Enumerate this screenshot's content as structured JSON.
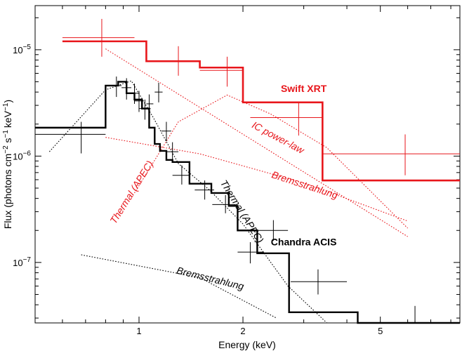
{
  "chart_data": {
    "type": "line",
    "xlabel": "Energy (keV)",
    "ylabel_parts": [
      "Flux (photons cm",
      "−2",
      " s",
      "−1",
      "keV",
      "−1",
      ")"
    ],
    "x_scale": "log",
    "y_scale": "log",
    "xlim": [
      0.5,
      8.5
    ],
    "ylim": [
      2.7e-08,
      2.6e-05
    ],
    "x_ticks": [
      {
        "value": 1,
        "label": "1"
      },
      {
        "value": 2,
        "label": "2"
      },
      {
        "value": 5,
        "label": "5"
      }
    ],
    "y_ticks": [
      {
        "value": 1e-07,
        "base": "10",
        "exp": "−7"
      },
      {
        "value": 1e-06,
        "base": "10",
        "exp": "−6"
      },
      {
        "value": 1e-05,
        "base": "10",
        "exp": "−5"
      }
    ],
    "colors": {
      "swift": "#e8161b",
      "chandra": "#000000"
    },
    "series": [
      {
        "name": "Swift XRT",
        "style": "data",
        "color_key": "swift",
        "points": [
          {
            "x": 0.78,
            "xlo": 0.6,
            "xhi": 0.97,
            "y": 1.3e-05,
            "ylo": 8.6e-06,
            "yhi": 1.95e-05
          },
          {
            "x": 1.3,
            "xlo": 1.12,
            "xhi": 1.5,
            "y": 7.8e-06,
            "ylo": 5.7e-06,
            "yhi": 1.08e-05
          },
          {
            "x": 1.8,
            "xlo": 1.5,
            "xhi": 2.0,
            "y": 6.4e-06,
            "ylo": 4.5e-06,
            "yhi": 8.6e-06
          },
          {
            "x": 2.9,
            "xlo": 2.1,
            "xhi": 3.4,
            "y": 2.3e-06,
            "ylo": 1.56e-06,
            "yhi": 3.2e-06
          },
          {
            "x": 5.9,
            "xlo": 3.4,
            "xhi": 8.5,
            "y": 1.05e-06,
            "ylo": 6.6e-07,
            "yhi": 1.6e-06
          }
        ]
      },
      {
        "name": "Swift XRT model",
        "style": "step",
        "color_key": "swift",
        "steps": [
          {
            "x0": 0.6,
            "x1": 1.05,
            "y": 1.2e-05
          },
          {
            "x0": 1.05,
            "x1": 1.5,
            "y": 7.8e-06
          },
          {
            "x0": 1.5,
            "x1": 2.0,
            "y": 6.8e-06
          },
          {
            "x0": 2.0,
            "x1": 3.4,
            "y": 3.2e-06
          },
          {
            "x0": 3.4,
            "x1": 8.5,
            "y": 5.9e-07
          }
        ]
      },
      {
        "name": "IC power-law",
        "style": "dotted",
        "color_key": "swift",
        "points": [
          [
            0.8,
            1.02e-05
          ],
          [
            6.0,
            1.75e-07
          ]
        ]
      },
      {
        "name": "Bremsstrahlung",
        "style": "dotted",
        "color_key": "swift",
        "points": [
          [
            0.8,
            1.5e-06
          ],
          [
            1.5,
            1.05e-06
          ],
          [
            3.0,
            5.6e-07
          ],
          [
            6.0,
            2.45e-07
          ]
        ]
      },
      {
        "name": "Thermal (APEC)",
        "style": "dotted",
        "color_key": "swift",
        "points": [
          [
            0.97,
            4.5e-07
          ],
          [
            1.3,
            2.1e-06
          ],
          [
            1.8,
            3.75e-06
          ],
          [
            2.4,
            2.5e-06
          ],
          [
            3.5,
            1.2e-06
          ],
          [
            6.0,
            2.1e-07
          ]
        ]
      },
      {
        "name": "Chandra ACIS",
        "style": "data",
        "color_key": "chandra",
        "points": [
          {
            "x": 0.68,
            "xlo": 0.5,
            "xhi": 0.8,
            "y": 1.6e-06,
            "ylo": 1.06e-06,
            "yhi": 2.1e-06
          },
          {
            "x": 0.86,
            "xlo": 0.83,
            "xhi": 0.89,
            "y": 4.6e-06,
            "ylo": 3.6e-06,
            "yhi": 5.6e-06
          },
          {
            "x": 0.92,
            "xlo": 0.89,
            "xhi": 0.95,
            "y": 4.4e-06,
            "ylo": 3.4e-06,
            "yhi": 5.4e-06
          },
          {
            "x": 0.97,
            "xlo": 0.94,
            "xhi": 1.0,
            "y": 3.9e-06,
            "ylo": 3.1e-06,
            "yhi": 4.8e-06
          },
          {
            "x": 1.0,
            "xlo": 0.97,
            "xhi": 1.03,
            "y": 3.3e-06,
            "ylo": 2.6e-06,
            "yhi": 4.1e-06
          },
          {
            "x": 1.04,
            "xlo": 1.0,
            "xhi": 1.08,
            "y": 2.8e-06,
            "ylo": 2.2e-06,
            "yhi": 3.4e-06
          },
          {
            "x": 1.07,
            "xlo": 1.05,
            "xhi": 1.1,
            "y": 3.1e-06,
            "ylo": 2.4e-06,
            "yhi": 3.8e-06
          },
          {
            "x": 1.14,
            "xlo": 1.11,
            "xhi": 1.17,
            "y": 4e-06,
            "ylo": 3.2e-06,
            "yhi": 4.9e-06
          },
          {
            "x": 1.2,
            "xlo": 1.16,
            "xhi": 1.24,
            "y": 1.72e-06,
            "ylo": 1.38e-06,
            "yhi": 2.1e-06
          },
          {
            "x": 1.25,
            "xlo": 1.2,
            "xhi": 1.3,
            "y": 1.1e-06,
            "ylo": 9e-07,
            "yhi": 1.35e-06
          },
          {
            "x": 1.33,
            "xlo": 1.25,
            "xhi": 1.4,
            "y": 6.6e-07,
            "ylo": 5.4e-07,
            "yhi": 8.2e-07
          },
          {
            "x": 1.55,
            "xlo": 1.45,
            "xhi": 1.65,
            "y": 4.8e-07,
            "ylo": 3.9e-07,
            "yhi": 5.9e-07
          },
          {
            "x": 1.78,
            "xlo": 1.63,
            "xhi": 1.9,
            "y": 3.5e-07,
            "ylo": 2.9e-07,
            "yhi": 4.3e-07
          },
          {
            "x": 2.1,
            "xlo": 1.93,
            "xhi": 2.3,
            "y": 1.25e-07,
            "ylo": 9.8e-08,
            "yhi": 1.55e-07
          },
          {
            "x": 2.45,
            "xlo": 2.2,
            "xhi": 2.7,
            "y": 2e-07,
            "ylo": 1.6e-07,
            "yhi": 2.5e-07
          },
          {
            "x": 3.3,
            "xlo": 2.75,
            "xhi": 4.0,
            "y": 6.6e-08,
            "ylo": 5e-08,
            "yhi": 8.6e-08
          },
          {
            "x": 6.3,
            "xlo": 4.5,
            "xhi": 8.5,
            "y": 2.6e-08,
            "ylo": 1.5e-08,
            "yhi": 3.9e-08
          }
        ]
      },
      {
        "name": "Chandra ACIS model",
        "style": "step",
        "color_key": "chandra",
        "steps": [
          {
            "x0": 0.5,
            "x1": 0.8,
            "y": 1.85e-06
          },
          {
            "x0": 0.8,
            "x1": 0.87,
            "y": 4.6e-06
          },
          {
            "x0": 0.87,
            "x1": 0.92,
            "y": 5e-06
          },
          {
            "x0": 0.92,
            "x1": 0.97,
            "y": 3.9e-06
          },
          {
            "x0": 0.97,
            "x1": 1.02,
            "y": 3.4e-06
          },
          {
            "x0": 1.02,
            "x1": 1.07,
            "y": 2.8e-06
          },
          {
            "x0": 1.07,
            "x1": 1.11,
            "y": 1.85e-06
          },
          {
            "x0": 1.11,
            "x1": 1.15,
            "y": 1.3e-06
          },
          {
            "x0": 1.15,
            "x1": 1.2,
            "y": 1.12e-06
          },
          {
            "x0": 1.2,
            "x1": 1.25,
            "y": 9.2e-07
          },
          {
            "x0": 1.25,
            "x1": 1.4,
            "y": 8.8e-07
          },
          {
            "x0": 1.4,
            "x1": 1.62,
            "y": 5.5e-07
          },
          {
            "x0": 1.62,
            "x1": 1.82,
            "y": 4.5e-07
          },
          {
            "x0": 1.82,
            "x1": 1.93,
            "y": 3.4e-07
          },
          {
            "x0": 1.93,
            "x1": 2.2,
            "y": 2e-07
          },
          {
            "x0": 2.2,
            "x1": 2.72,
            "y": 1.22e-07
          },
          {
            "x0": 2.72,
            "x1": 4.3,
            "y": 3.4e-08
          },
          {
            "x0": 4.3,
            "x1": 8.5,
            "y": 2.3e-08
          }
        ]
      },
      {
        "name": "Thermal (APEC)",
        "style": "dotted",
        "color_key": "chandra",
        "points": [
          [
            0.55,
            1.1e-06
          ],
          [
            0.8,
            4.2e-06
          ],
          [
            0.95,
            5.1e-06
          ],
          [
            1.1,
            2.3e-06
          ],
          [
            1.3,
            8.5e-07
          ],
          [
            1.6,
            4.8e-07
          ],
          [
            2.0,
            2.3e-07
          ],
          [
            2.7,
            6e-08
          ],
          [
            3.5,
            1.6e-08
          ]
        ]
      },
      {
        "name": "Bremsstrahlung",
        "style": "dotted",
        "color_key": "chandra",
        "points": [
          [
            0.68,
            1.18e-07
          ],
          [
            1.5,
            7.2e-08
          ],
          [
            2.5,
            3e-08
          ]
        ]
      }
    ],
    "annotations": [
      {
        "text": "Swift XRT",
        "color_key": "swift",
        "bold": true,
        "x": 3.0,
        "y": 4e-06,
        "rotate": 0
      },
      {
        "text": "IC power-law",
        "color_key": "swift",
        "bold": false,
        "x": 2.5,
        "y": 1.4e-06,
        "rotate": 28
      },
      {
        "text": "Bremsstrahlung",
        "color_key": "swift",
        "bold": false,
        "x": 3.0,
        "y": 5e-07,
        "rotate": 18
      },
      {
        "text": "Thermal (APEC)",
        "color_key": "swift",
        "bold": false,
        "x": 0.97,
        "y": 4.4e-07,
        "rotate": -58
      },
      {
        "text": "Chandra ACIS",
        "color_key": "chandra",
        "bold": true,
        "x": 3.0,
        "y": 1.45e-07,
        "rotate": 0
      },
      {
        "text": "Thermal (APEC)",
        "color_key": "chandra",
        "bold": false,
        "x": 1.95,
        "y": 2.9e-07,
        "rotate": 58
      },
      {
        "text": "Bremsstrahlung",
        "color_key": "chandra",
        "bold": false,
        "x": 1.6,
        "y": 6.6e-08,
        "rotate": 14
      }
    ]
  }
}
